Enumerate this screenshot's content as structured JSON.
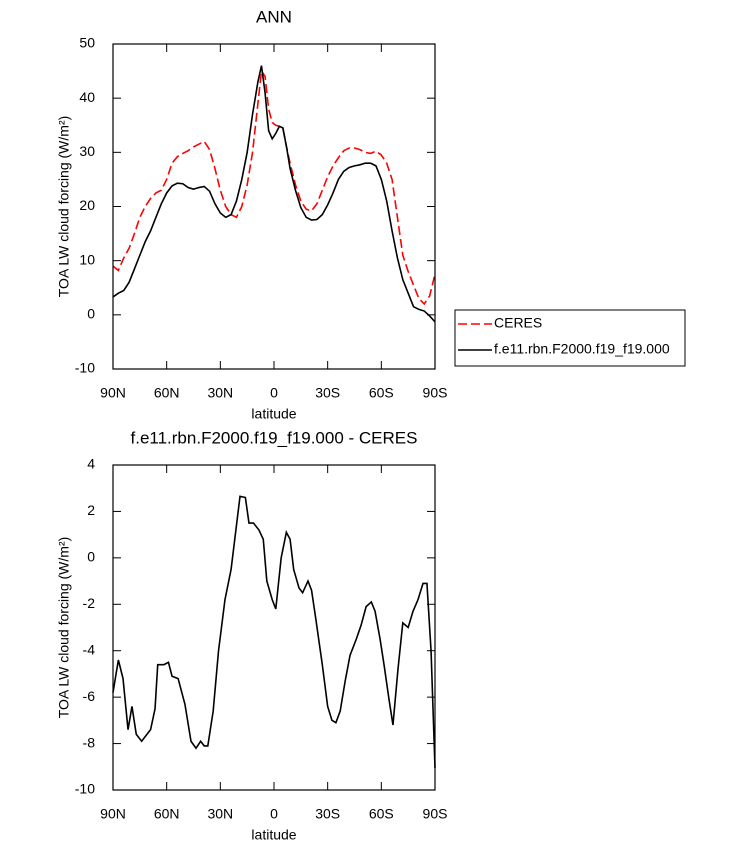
{
  "chart_data": [
    {
      "type": "line",
      "title": "ANN",
      "xlabel": "latitude",
      "ylabel": "TOA LW cloud forcing (W/m²)",
      "x": [
        90,
        87,
        84,
        81,
        78,
        75,
        72,
        69,
        66,
        63,
        60,
        57,
        54,
        51,
        48,
        45,
        42,
        39,
        36,
        33,
        30,
        27,
        24,
        21,
        18,
        15,
        12,
        9,
        7,
        5,
        3,
        1,
        -1,
        -3,
        -5,
        -7,
        -9,
        -12,
        -15,
        -18,
        -21,
        -24,
        -27,
        -30,
        -33,
        -36,
        -39,
        -42,
        -45,
        -48,
        -51,
        -54,
        -57,
        -60,
        -63,
        -66,
        -69,
        -72,
        -75,
        -78,
        -81,
        -84,
        -87,
        -90
      ],
      "series": [
        {
          "name": "CERES",
          "color": "#ff0000",
          "linestyle": "dashed",
          "values": [
            9,
            8.2,
            10.5,
            12.3,
            15,
            18,
            20,
            21.5,
            22.5,
            23,
            25,
            28,
            29.2,
            29.8,
            30.3,
            31,
            31.5,
            32,
            30.5,
            27,
            23,
            20,
            18.5,
            18,
            20,
            24,
            30,
            39,
            45,
            44,
            38,
            35.5,
            35,
            34.8,
            34.3,
            31,
            28,
            24,
            21,
            19.5,
            19.2,
            20.5,
            23,
            25.5,
            27.5,
            29,
            30.3,
            30.8,
            30.8,
            30.5,
            30,
            29.8,
            30.2,
            29.5,
            28,
            25,
            18,
            11,
            8,
            5.5,
            3,
            2,
            3.5,
            7.5
          ]
        },
        {
          "name": "f.e11.rbn.F2000.f19_f19.000",
          "color": "#000000",
          "linestyle": "solid",
          "values": [
            3.3,
            4,
            4.5,
            6,
            8.5,
            11,
            13.5,
            15.5,
            18,
            20.5,
            22.5,
            23.8,
            24.3,
            24.2,
            23.5,
            23.2,
            23.5,
            23.7,
            22.8,
            20.5,
            18.8,
            18,
            18.5,
            21,
            25,
            30,
            37,
            43,
            46,
            41,
            34,
            32.5,
            33.5,
            34.8,
            34.5,
            31,
            27,
            23,
            19.8,
            18,
            17.5,
            17.6,
            18.5,
            20.3,
            22.5,
            25,
            26.5,
            27.2,
            27.5,
            27.7,
            28,
            28,
            27.5,
            25,
            21,
            15.5,
            10.5,
            6.5,
            4,
            1.5,
            1,
            0.7,
            -0.2,
            -1.3
          ]
        }
      ],
      "xlim": [
        90,
        -90
      ],
      "xticks": [
        {
          "value": 90,
          "label": "90N"
        },
        {
          "value": 60,
          "label": "60N"
        },
        {
          "value": 30,
          "label": "30N"
        },
        0,
        {
          "value": -30,
          "label": "30S"
        },
        {
          "value": -60,
          "label": "60S"
        },
        {
          "value": -90,
          "label": "90S"
        }
      ],
      "ylim": [
        -10,
        50
      ],
      "yticks": [
        -10,
        0,
        10,
        20,
        30,
        40,
        50
      ],
      "legend": "outside-right"
    },
    {
      "type": "line",
      "title": "f.e11.rbn.F2000.f19_f19.000 - CERES",
      "xlabel": "latitude",
      "ylabel": "TOA LW cloud forcing (W/m²)",
      "x": [
        90,
        87,
        84.4,
        81.6,
        79.4,
        77,
        74,
        69,
        66.5,
        65,
        61.5,
        59,
        57,
        53.6,
        49.8,
        46.4,
        43.6,
        41,
        39,
        37,
        34,
        31,
        27.4,
        24,
        21.3,
        19,
        16,
        14,
        11.5,
        8.4,
        6,
        4,
        1,
        -1,
        -4,
        -6.9,
        -9,
        -11,
        -14,
        -16,
        -19,
        -21,
        -23.5,
        -27,
        -30,
        -32.4,
        -34.6,
        -37,
        -39.8,
        -42.5,
        -46,
        -48.7,
        -51.5,
        -54.4,
        -56.5,
        -59.3,
        -61.5,
        -64.3,
        -66.5,
        -69.3,
        -72,
        -75,
        -77.7,
        -80.5,
        -83.3,
        -85.5,
        -87.8,
        -90
      ],
      "values": [
        -5.8,
        -4.4,
        -5.2,
        -7.4,
        -6.4,
        -7.6,
        -7.9,
        -7.4,
        -6.5,
        -4.6,
        -4.6,
        -4.5,
        -5.1,
        -5.2,
        -6.3,
        -7.9,
        -8.2,
        -7.9,
        -8.1,
        -8.1,
        -6.6,
        -4,
        -1.8,
        -0.5,
        1.2,
        2.65,
        2.6,
        1.5,
        1.5,
        1.2,
        0.8,
        -1,
        -1.8,
        -2.2,
        0,
        1.1,
        0.8,
        -0.5,
        -1.3,
        -1.5,
        -1,
        -1.4,
        -2.7,
        -4.6,
        -6.4,
        -7,
        -7.1,
        -6.6,
        -5.3,
        -4.2,
        -3.5,
        -2.9,
        -2.1,
        -1.9,
        -2.3,
        -3.5,
        -4.6,
        -6.1,
        -7.2,
        -4.8,
        -2.8,
        -3,
        -2.3,
        -1.8,
        -1.1,
        -1.1,
        -4,
        -9.05
      ],
      "color": "#000000",
      "xlim": [
        90,
        -90
      ],
      "xticks": [
        {
          "value": 90,
          "label": "90N"
        },
        {
          "value": 60,
          "label": "60N"
        },
        {
          "value": 30,
          "label": "30N"
        },
        0,
        {
          "value": -30,
          "label": "30S"
        },
        {
          "value": -60,
          "label": "60S"
        },
        {
          "value": -90,
          "label": "90S"
        }
      ],
      "ylim": [
        -10,
        4
      ],
      "yticks": [
        -10,
        -8,
        -6,
        -4,
        -2,
        0,
        2,
        4
      ]
    }
  ]
}
